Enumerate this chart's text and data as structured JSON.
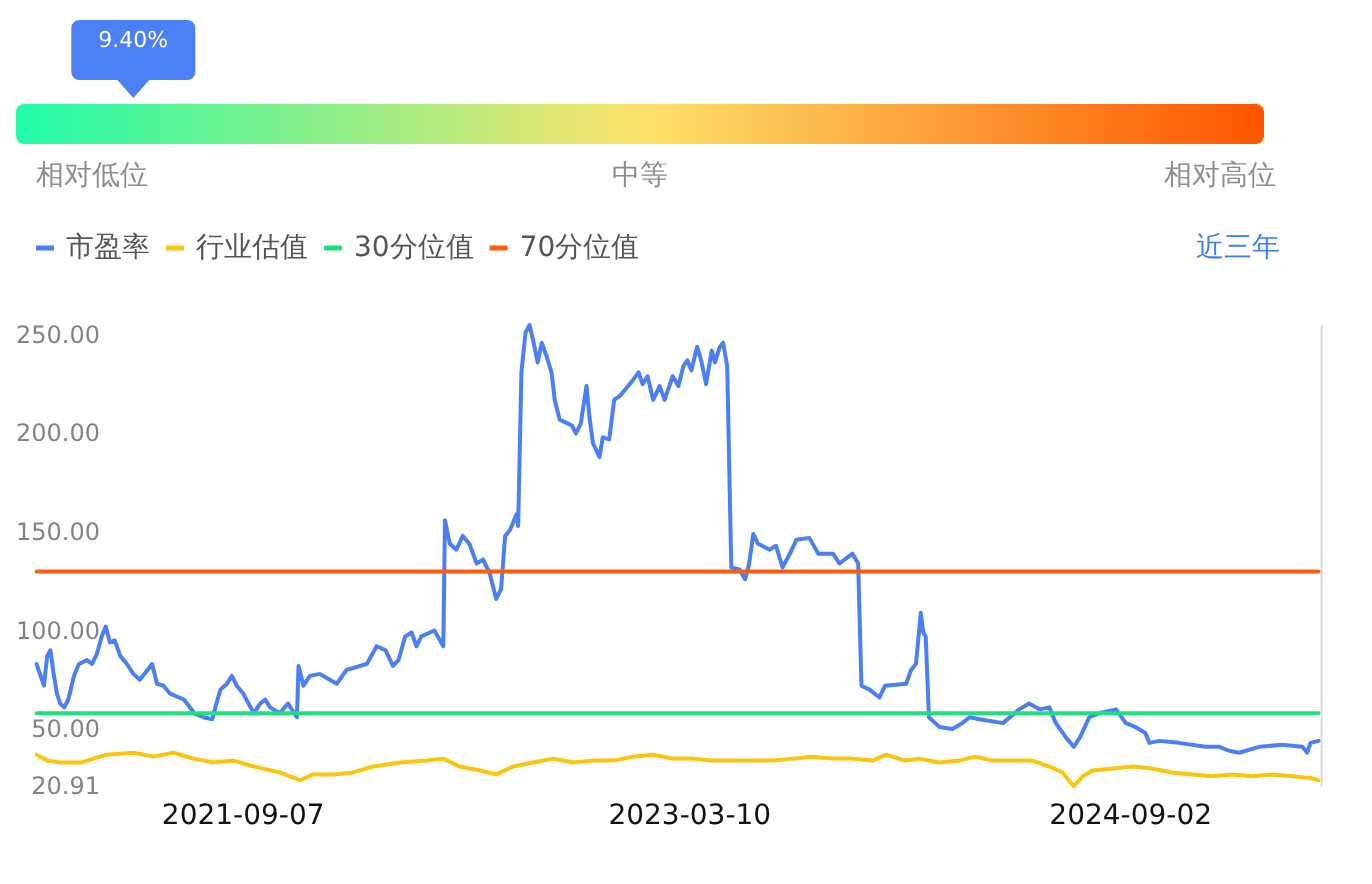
{
  "chart_data": [
    {
      "type": "other",
      "values": [
        9.4
      ],
      "value_labels": [
        "9.40%"
      ],
      "color": "#4b7ff6",
      "annotations": [
        "相对低位",
        "中等",
        "相对高位"
      ]
    },
    {
      "type": "line",
      "legend": "top left",
      "annotations": [
        "近三年"
      ],
      "xlim": [
        "2020-12-27",
        "2025-04-21"
      ],
      "xticks": [
        "2021-09-07",
        "2023-03-10",
        "2024-09-02"
      ],
      "ylim": [
        20.91,
        255
      ],
      "yticks": [
        {
          "value": 20.91,
          "label": "20.91"
        },
        {
          "value": 50,
          "label": "50.00"
        },
        {
          "value": 100,
          "label": "100.00"
        },
        {
          "value": 150,
          "label": "150.00"
        },
        {
          "value": 200,
          "label": "200.00"
        },
        {
          "value": 250,
          "label": "250.00"
        }
      ],
      "series": [
        {
          "name": "市盈率",
          "color": "#4b7ff6",
          "x": [
            "2020-12-27",
            "2021-01-05",
            "2021-01-09",
            "2021-01-13",
            "2021-01-17",
            "2021-01-21",
            "2021-01-25",
            "2021-01-30",
            "2021-02-04",
            "2021-02-11",
            "2021-02-17",
            "2021-02-27",
            "2021-03-05",
            "2021-03-11",
            "2021-03-17",
            "2021-03-22",
            "2021-03-27",
            "2021-04-02",
            "2021-04-09",
            "2021-04-17",
            "2021-04-25",
            "2021-05-03",
            "2021-05-18",
            "2021-05-24",
            "2021-06-01",
            "2021-06-09",
            "2021-06-26",
            "2021-07-09",
            "2021-07-20",
            "2021-07-31",
            "2021-08-05",
            "2021-08-10",
            "2021-08-18",
            "2021-08-24",
            "2021-08-30",
            "2021-09-07",
            "2021-09-20",
            "2021-09-28",
            "2021-10-04",
            "2021-10-10",
            "2021-10-22",
            "2021-11-01",
            "2021-11-12",
            "2021-11-14",
            "2021-11-20",
            "2021-11-28",
            "2021-12-10",
            "2021-12-31",
            "2022-01-12",
            "2022-02-06",
            "2022-02-18",
            "2022-03-01",
            "2022-03-10",
            "2022-03-17",
            "2022-03-25",
            "2022-04-02",
            "2022-04-08",
            "2022-04-14",
            "2022-04-30",
            "2022-05-11",
            "2022-05-13",
            "2022-05-19",
            "2022-05-27",
            "2022-06-04",
            "2022-06-12",
            "2022-06-21",
            "2022-06-29",
            "2022-07-07",
            "2022-07-15",
            "2022-07-21",
            "2022-07-26",
            "2022-08-01",
            "2022-08-09",
            "2022-08-11",
            "2022-08-15",
            "2022-08-20",
            "2022-08-25",
            "2022-08-29",
            "2022-09-04",
            "2022-09-09",
            "2022-09-15",
            "2022-09-21",
            "2022-09-25",
            "2022-10-01",
            "2022-10-16",
            "2022-10-21",
            "2022-10-27",
            "2022-11-03",
            "2022-11-07",
            "2022-11-11",
            "2022-11-19",
            "2022-11-23",
            "2022-12-01",
            "2022-12-07",
            "2022-12-14",
            "2022-12-30",
            "2023-01-06",
            "2023-01-11",
            "2023-01-17",
            "2023-01-24",
            "2023-02-01",
            "2023-02-07",
            "2023-02-17",
            "2023-02-24",
            "2023-03-02",
            "2023-03-07",
            "2023-03-12",
            "2023-03-19",
            "2023-03-24",
            "2023-03-30",
            "2023-04-06",
            "2023-04-10",
            "2023-04-16",
            "2023-04-20",
            "2023-04-25",
            "2023-04-30",
            "2023-05-10",
            "2023-05-17",
            "2023-05-22",
            "2023-05-27",
            "2023-06-02",
            "2023-06-16",
            "2023-06-24",
            "2023-07-02",
            "2023-07-11",
            "2023-07-19",
            "2023-08-04",
            "2023-08-15",
            "2023-09-02",
            "2023-09-10",
            "2023-09-26",
            "2023-10-03",
            "2023-10-07",
            "2023-10-17",
            "2023-10-29",
            "2023-11-05",
            "2023-12-01",
            "2023-12-07",
            "2023-12-13",
            "2023-12-19",
            "2023-12-22",
            "2023-12-25",
            "2023-12-29",
            "2024-01-11",
            "2024-01-27",
            "2024-02-08",
            "2024-02-17",
            "2024-02-29",
            "2024-03-29",
            "2024-04-18",
            "2024-04-30",
            "2024-05-13",
            "2024-05-25",
            "2024-06-02",
            "2024-06-14",
            "2024-06-24",
            "2024-07-02",
            "2024-07-13",
            "2024-07-25",
            "2024-08-15",
            "2024-08-27",
            "2024-09-08",
            "2024-09-20",
            "2024-09-25",
            "2024-10-07",
            "2024-10-31",
            "2024-12-03",
            "2024-12-20",
            "2025-01-01",
            "2025-01-13",
            "2025-02-07",
            "2025-03-07",
            "2025-04-01",
            "2025-04-07",
            "2025-04-11",
            "2025-04-21"
          ],
          "values": [
            83,
            72,
            87,
            90,
            78,
            68,
            63,
            61,
            65,
            77,
            83,
            85,
            83,
            88,
            97,
            102,
            94,
            95,
            87,
            83,
            78,
            75,
            83,
            73,
            72,
            68,
            65,
            58,
            56,
            55,
            63,
            70,
            73,
            77,
            72,
            68,
            58,
            63,
            65,
            61,
            58,
            63,
            56,
            82,
            72,
            77,
            78,
            73,
            80,
            83,
            92,
            90,
            82,
            85,
            97,
            99,
            92,
            97,
            100,
            92,
            156,
            144,
            141,
            148,
            144,
            134,
            136,
            129,
            116,
            121,
            148,
            151,
            159,
            153,
            231,
            251,
            255,
            248,
            236,
            246,
            239,
            231,
            217,
            207,
            204,
            200,
            205,
            224,
            207,
            195,
            188,
            198,
            197,
            217,
            219,
            227,
            231,
            225,
            229,
            217,
            224,
            217,
            229,
            224,
            234,
            237,
            232,
            244,
            237,
            225,
            242,
            236,
            244,
            246,
            234,
            132,
            131,
            126,
            134,
            149,
            144,
            141,
            143,
            132,
            139,
            146,
            147,
            139,
            139,
            134,
            139,
            134,
            72,
            70,
            66,
            72,
            73,
            80,
            83,
            109,
            99,
            97,
            56,
            51,
            50,
            53,
            56,
            55,
            53,
            60,
            63,
            60,
            61,
            53,
            46,
            41,
            46,
            56,
            58,
            60,
            53,
            51,
            48,
            43,
            44,
            43,
            41,
            41,
            39,
            38,
            41,
            42,
            41,
            38,
            43,
            44
          ]
        },
        {
          "name": "行业估值",
          "color": "#fcc40b",
          "x": [
            "2020-12-27",
            "2021-01-09",
            "2021-01-25",
            "2021-02-19",
            "2021-03-23",
            "2021-04-25",
            "2021-05-20",
            "2021-06-13",
            "2021-07-08",
            "2021-08-01",
            "2021-08-26",
            "2021-09-20",
            "2021-10-22",
            "2021-11-16",
            "2021-12-02",
            "2021-12-27",
            "2022-01-20",
            "2022-02-14",
            "2022-03-19",
            "2022-04-20",
            "2022-05-11",
            "2022-05-31",
            "2022-06-25",
            "2022-07-15",
            "2022-08-05",
            "2022-08-29",
            "2022-09-23",
            "2022-10-18",
            "2022-11-11",
            "2022-12-06",
            "2022-12-30",
            "2023-01-24",
            "2023-02-17",
            "2023-03-14",
            "2023-04-07",
            "2023-05-02",
            "2023-05-27",
            "2023-06-20",
            "2023-07-15",
            "2023-08-08",
            "2023-09-02",
            "2023-09-26",
            "2023-10-21",
            "2023-11-06",
            "2023-11-30",
            "2023-12-17",
            "2024-01-11",
            "2024-02-04",
            "2024-02-24",
            "2024-03-16",
            "2024-04-10",
            "2024-05-04",
            "2024-05-25",
            "2024-06-10",
            "2024-06-24",
            "2024-07-05",
            "2024-07-17",
            "2024-08-11",
            "2024-09-05",
            "2024-09-28",
            "2024-10-23",
            "2024-11-17",
            "2024-12-11",
            "2025-01-05",
            "2025-01-29",
            "2025-02-23",
            "2025-03-20",
            "2025-04-13",
            "2025-04-21"
          ],
          "values": [
            37,
            34,
            33,
            33,
            37,
            38,
            36,
            38,
            35,
            33,
            34,
            31,
            28,
            24,
            27,
            27,
            28,
            31,
            33,
            34,
            35,
            31,
            29,
            27,
            31,
            33,
            35,
            33,
            34,
            34,
            36,
            37,
            35,
            35,
            34,
            34,
            34,
            34,
            35,
            36,
            35,
            35,
            34,
            37,
            34,
            35,
            33,
            34,
            36,
            34,
            34,
            34,
            31,
            28,
            21,
            26,
            29,
            30,
            31,
            30,
            28,
            27,
            26,
            27,
            26,
            27,
            26,
            25,
            24
          ]
        },
        {
          "name": "30分位值",
          "color": "#20df7e",
          "x": [
            "2020-12-27",
            "2025-04-21"
          ],
          "values": [
            58,
            58
          ]
        },
        {
          "name": "70分位值",
          "color": "#fe5c0c",
          "x": [
            "2020-12-27",
            "2025-04-21"
          ],
          "values": [
            130,
            130
          ]
        }
      ]
    }
  ]
}
